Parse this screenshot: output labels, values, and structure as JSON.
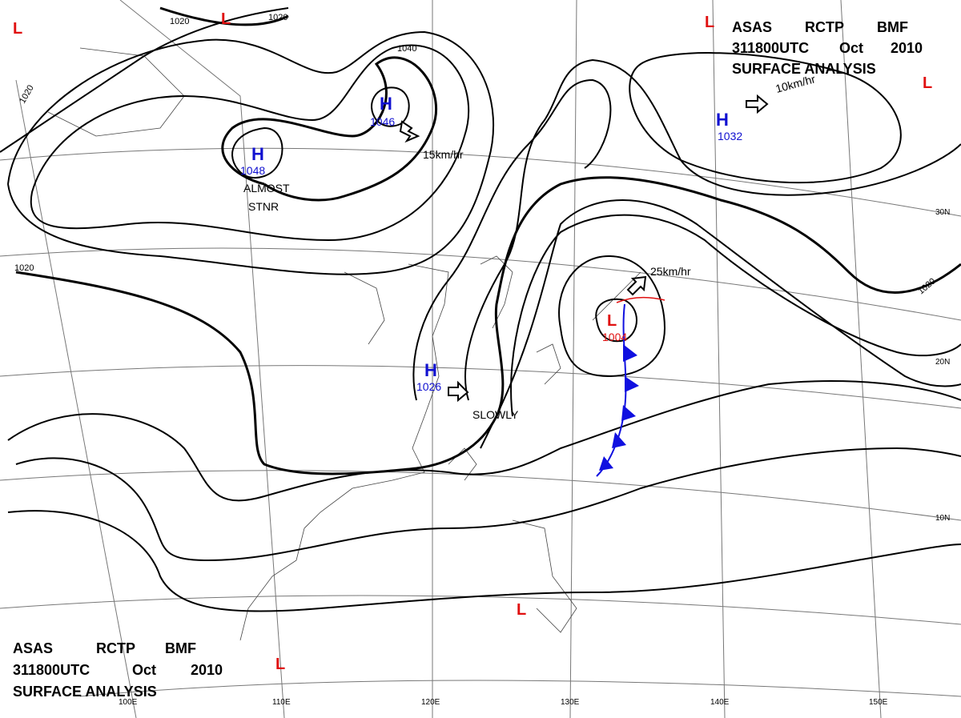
{
  "title_top": {
    "line1": [
      "ASAS",
      "RCTP",
      "BMF"
    ],
    "line2": [
      "311800UTC",
      "Oct",
      "2010"
    ],
    "line3": "SURFACE ANALYSIS"
  },
  "title_bottom": {
    "line1": [
      "ASAS",
      "RCTP",
      "BMF"
    ],
    "line2": [
      "311800UTC",
      "Oct",
      "2010"
    ],
    "line3": "SURFACE ANALYSIS"
  },
  "highs": [
    {
      "letter": "H",
      "value": "1048"
    },
    {
      "letter": "H",
      "value": "1046"
    },
    {
      "letter": "H",
      "value": "1032"
    },
    {
      "letter": "H",
      "value": "1026"
    }
  ],
  "lows": [
    {
      "letter": "L",
      "value": "1004"
    }
  ],
  "low_marks": [
    "L",
    "L",
    "L",
    "L",
    "L",
    "L"
  ],
  "motion_notes": [
    "15km/hr",
    "10km/hr",
    "25km/hr",
    "SLOWLY",
    "ALMOST",
    "STNR"
  ],
  "isobar_labels": [
    "1020",
    "1020",
    "1020",
    "1020",
    "1040",
    "1020"
  ],
  "longitude_labels": [
    "100E",
    "110E",
    "120E",
    "130E",
    "140E",
    "150E"
  ],
  "latitude_labels": [
    "30N",
    "20N",
    "10N"
  ],
  "colors": {
    "high": "#1010d0",
    "low": "#e01010",
    "front": "#1010e0",
    "line": "#000000"
  }
}
